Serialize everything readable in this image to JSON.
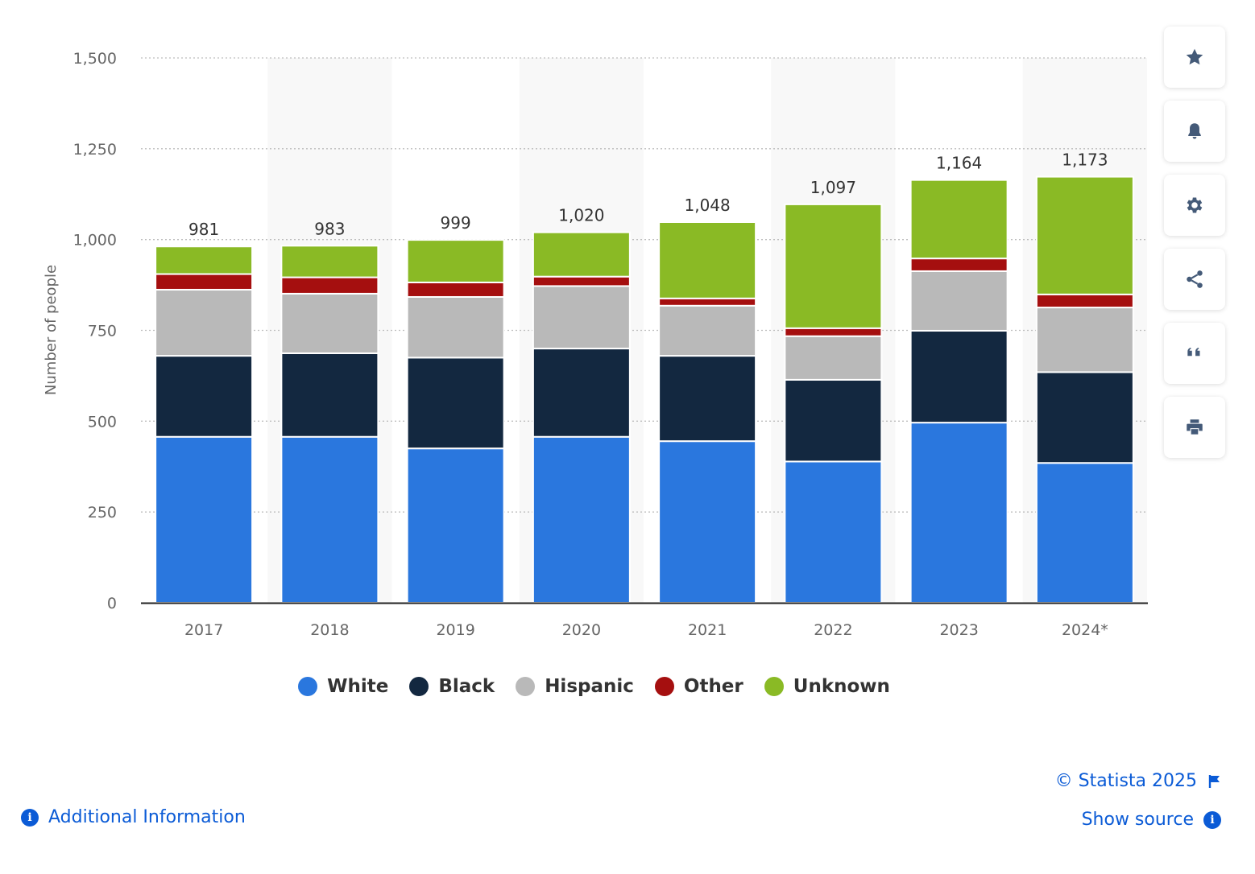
{
  "chart_data": {
    "type": "bar",
    "stacked": true,
    "title": "",
    "xlabel": "",
    "ylabel": "Number of people",
    "ylim": [
      0,
      1500
    ],
    "yticks": [
      0,
      250,
      500,
      750,
      1000,
      1250,
      1500
    ],
    "ytick_labels": [
      "0",
      "250",
      "500",
      "750",
      "1,000",
      "1,250",
      "1,500"
    ],
    "grid": true,
    "legend_position": "bottom",
    "categories": [
      "2017",
      "2018",
      "2019",
      "2020",
      "2021",
      "2022",
      "2023",
      "2024*"
    ],
    "totals": [
      981,
      983,
      999,
      1020,
      1048,
      1097,
      1164,
      1173
    ],
    "total_labels": [
      "981",
      "983",
      "999",
      "1,020",
      "1,048",
      "1,097",
      "1,164",
      "1,173"
    ],
    "series": [
      {
        "name": "White",
        "color": "#2a77de",
        "values": [
          457,
          457,
          425,
          457,
          445,
          389,
          496,
          385
        ]
      },
      {
        "name": "Black",
        "color": "#132840",
        "values": [
          223,
          230,
          250,
          243,
          235,
          225,
          253,
          250
        ]
      },
      {
        "name": "Hispanic",
        "color": "#b9b9b9",
        "values": [
          182,
          164,
          167,
          172,
          138,
          120,
          164,
          178
        ]
      },
      {
        "name": "Other",
        "color": "#a50f0f",
        "values": [
          43,
          45,
          40,
          26,
          20,
          22,
          35,
          36
        ]
      },
      {
        "name": "Unknown",
        "color": "#8aba25",
        "values": [
          76,
          87,
          117,
          122,
          210,
          341,
          216,
          324
        ]
      }
    ]
  },
  "sidebar": {
    "buttons": [
      {
        "name": "star-icon",
        "label": "Favorite"
      },
      {
        "name": "bell-icon",
        "label": "Notifications"
      },
      {
        "name": "gear-icon",
        "label": "Settings"
      },
      {
        "name": "share-icon",
        "label": "Share"
      },
      {
        "name": "quote-icon",
        "label": "Cite"
      },
      {
        "name": "print-icon",
        "label": "Print"
      }
    ]
  },
  "footer": {
    "credit": "© Statista 2025",
    "show_source": "Show source",
    "additional_info": "Additional Information"
  },
  "colors": {
    "link": "#0b5bd6",
    "icon": "#445a78"
  }
}
